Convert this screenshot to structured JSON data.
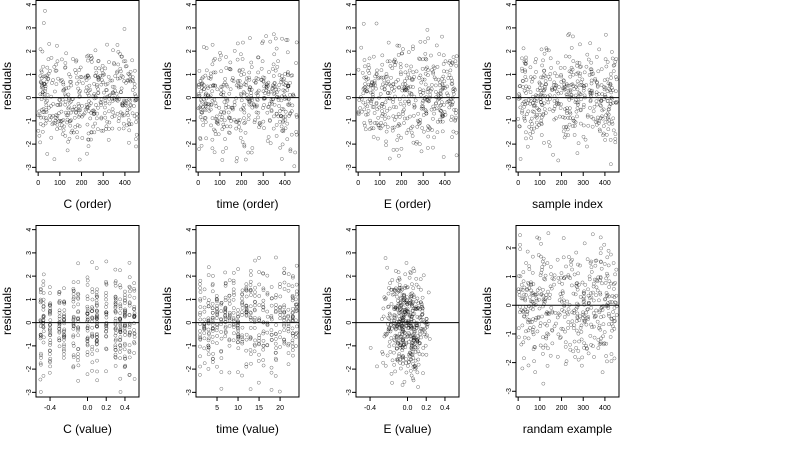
{
  "chart_data": [
    {
      "type": "scatter",
      "xlabel": "C (order)",
      "ylabel": "residuals",
      "xticks": [
        0,
        100,
        200,
        300,
        400
      ],
      "xlim": [
        -10,
        465
      ],
      "yticks": [
        -3,
        -2,
        -1,
        0,
        1,
        2,
        3,
        4
      ],
      "ylim": [
        -3.2,
        4.2
      ],
      "ref_line": 0,
      "n_points": 450,
      "pattern": "uniform",
      "seed": 11
    },
    {
      "type": "scatter",
      "xlabel": "time (order)",
      "ylabel": "residuals",
      "xticks": [
        0,
        100,
        200,
        300,
        400
      ],
      "xlim": [
        -10,
        465
      ],
      "yticks": [
        -3,
        -2,
        -1,
        0,
        1,
        2,
        3,
        4
      ],
      "ylim": [
        -3.2,
        4.2
      ],
      "ref_line": 0,
      "n_points": 450,
      "pattern": "uniform",
      "seed": 23
    },
    {
      "type": "scatter",
      "xlabel": "E (order)",
      "ylabel": "residuals",
      "xticks": [
        0,
        100,
        200,
        300,
        400
      ],
      "xlim": [
        -10,
        465
      ],
      "yticks": [
        -3,
        -2,
        -1,
        0,
        1,
        2,
        3,
        4
      ],
      "ylim": [
        -3.2,
        4.2
      ],
      "ref_line": 0,
      "n_points": 450,
      "pattern": "uniform",
      "seed": 37
    },
    {
      "type": "scatter",
      "xlabel": "sample index",
      "ylabel": "residuals",
      "xticks": [
        0,
        100,
        200,
        300,
        400
      ],
      "xlim": [
        -10,
        465
      ],
      "yticks": [
        -3,
        -2,
        -1,
        0,
        1,
        2,
        3,
        4
      ],
      "ylim": [
        -3.2,
        4.2
      ],
      "ref_line": 0,
      "n_points": 450,
      "pattern": "uniform",
      "seed": 41
    },
    {
      "type": "scatter",
      "xlabel": "C (value)",
      "ylabel": "residuals",
      "xticks": [
        -0.4,
        0.0,
        0.2,
        0.4
      ],
      "xtick_labels": [
        "-0.4",
        "0.0",
        "0.2",
        "0.4"
      ],
      "xlim": [
        -0.55,
        0.55
      ],
      "yticks": [
        -3,
        -2,
        -1,
        0,
        1,
        2,
        3,
        4
      ],
      "ylim": [
        -3.2,
        4.2
      ],
      "ref_line": 0,
      "n_points": 450,
      "pattern": "columns",
      "columns": [
        -0.5,
        -0.47,
        -0.4,
        -0.3,
        -0.25,
        -0.15,
        -0.1,
        0.0,
        0.05,
        0.1,
        0.2,
        0.3,
        0.35,
        0.4,
        0.45,
        0.5
      ],
      "seed": 53
    },
    {
      "type": "scatter",
      "xlabel": "time (value)",
      "ylabel": "residuals",
      "xticks": [
        5,
        10,
        15,
        20
      ],
      "xtick_labels": [
        "5",
        "10",
        "15",
        "20"
      ],
      "xlim": [
        0,
        24.5
      ],
      "yticks": [
        -3,
        -2,
        -1,
        0,
        1,
        2,
        3,
        4
      ],
      "ylim": [
        -3.2,
        4.2
      ],
      "ref_line": 0,
      "n_points": 450,
      "pattern": "columns",
      "columns": [
        1,
        2,
        3,
        4,
        5,
        6,
        7,
        8,
        9,
        10,
        11,
        12,
        13,
        14,
        15,
        16,
        17,
        18,
        19,
        20,
        21,
        22,
        23,
        24
      ],
      "seed": 67
    },
    {
      "type": "scatter",
      "xlabel": "E (value)",
      "ylabel": "residuals",
      "xticks": [
        -0.4,
        0.0,
        0.2,
        0.4
      ],
      "xtick_labels": [
        "-0.4",
        "0.0",
        "0.2",
        "0.4"
      ],
      "xlim": [
        -0.55,
        0.55
      ],
      "yticks": [
        -3,
        -2,
        -1,
        0,
        1,
        2,
        3,
        4
      ],
      "ylim": [
        -3.2,
        4.2
      ],
      "ref_line": 0,
      "n_points": 450,
      "pattern": "centered",
      "center": -0.02,
      "spread": 0.12,
      "seed": 79
    },
    {
      "type": "scatter",
      "xlabel": "randam example",
      "ylabel": "residuals",
      "xticks": [
        0,
        100,
        200,
        300,
        400
      ],
      "xlim": [
        -10,
        465
      ],
      "yticks": [
        -3,
        -2,
        -1,
        0,
        1,
        2
      ],
      "ylim": [
        -3.2,
        2.8
      ],
      "ref_line": 0,
      "n_points": 450,
      "pattern": "uniform",
      "seed": 97
    }
  ]
}
